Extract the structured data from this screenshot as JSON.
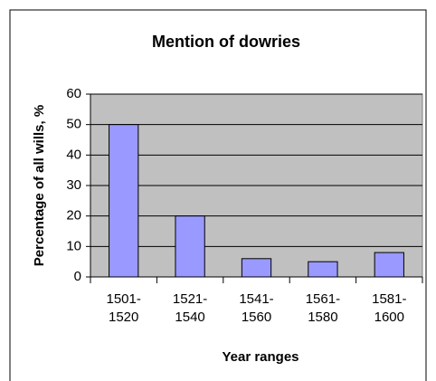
{
  "chart_data": {
    "type": "bar",
    "title": "Mention of dowries",
    "x_label": "Year ranges",
    "y_label": "Percentage of all wills, %",
    "categories": [
      "1501-1520",
      "1521-1540",
      "1541-1560",
      "1561-1580",
      "1581-1600"
    ],
    "values": [
      50,
      20,
      6,
      5,
      8
    ],
    "color": "#9999ff",
    "ylim": [
      0,
      60
    ],
    "yticks": [
      0,
      10,
      20,
      30,
      40,
      50,
      60
    ],
    "grid": true
  }
}
